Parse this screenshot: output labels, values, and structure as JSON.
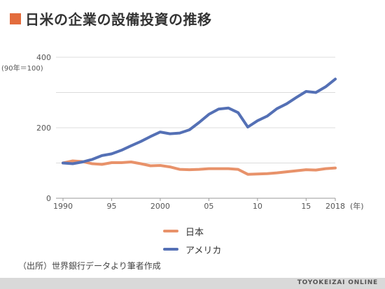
{
  "header": {
    "title": "日米の企業の設備投資の推移",
    "accent_color": "#e36c3d"
  },
  "chart_data": {
    "type": "line",
    "title": "日米の企業の設備投資の推移",
    "ylabel": "(90年＝100)",
    "xlabel": "(年)",
    "ylim": [
      0,
      400
    ],
    "xlim": [
      1990,
      2018
    ],
    "y_ticks": [
      0,
      200,
      400
    ],
    "x_ticks": [
      {
        "value": 1990,
        "label": "1990"
      },
      {
        "value": 1995,
        "label": "95"
      },
      {
        "value": 2000,
        "label": "2000"
      },
      {
        "value": 2005,
        "label": "05"
      },
      {
        "value": 2010,
        "label": "10"
      },
      {
        "value": 2015,
        "label": "15"
      },
      {
        "value": 2018,
        "label": "2018"
      }
    ],
    "grid": true,
    "legend_position": "bottom-center",
    "x": [
      1990,
      1991,
      1992,
      1993,
      1994,
      1995,
      1996,
      1997,
      1998,
      1999,
      2000,
      2001,
      2002,
      2003,
      2004,
      2005,
      2006,
      2007,
      2008,
      2009,
      2010,
      2011,
      2012,
      2013,
      2014,
      2015,
      2016,
      2017,
      2018
    ],
    "series": [
      {
        "name": "日本",
        "color": "#e8926a",
        "values": [
          100,
          106,
          104,
          98,
          96,
          101,
          101,
          103,
          98,
          92,
          93,
          89,
          82,
          81,
          82,
          84,
          84,
          84,
          82,
          68,
          69,
          70,
          72,
          75,
          78,
          81,
          80,
          84,
          86
        ]
      },
      {
        "name": "アメリカ",
        "color": "#5470b5",
        "values": [
          100,
          98,
          103,
          110,
          121,
          126,
          136,
          149,
          161,
          175,
          188,
          183,
          185,
          194,
          215,
          238,
          253,
          256,
          243,
          202,
          220,
          233,
          254,
          268,
          286,
          303,
          300,
          316,
          338
        ]
      }
    ]
  },
  "legend": {
    "items": [
      {
        "label": "日本",
        "color": "#e8926a"
      },
      {
        "label": "アメリカ",
        "color": "#5470b5"
      }
    ]
  },
  "footer": {
    "source": "（出所）世界銀行データより筆者作成",
    "brand": "TOYOKEIZAI ONLINE"
  }
}
